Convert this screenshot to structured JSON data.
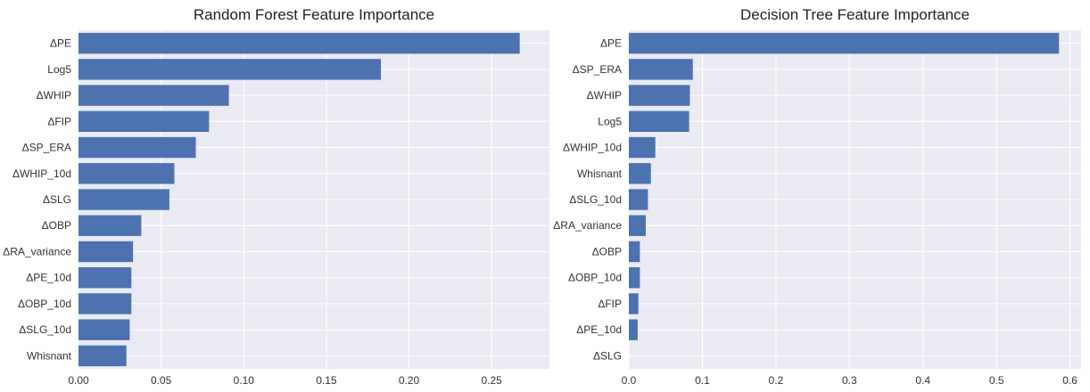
{
  "chart_data": [
    {
      "type": "bar",
      "orientation": "horizontal",
      "title": "Random Forest Feature Importance",
      "categories": [
        "ΔPE",
        "Log5",
        "ΔWHIP",
        "ΔFIP",
        "ΔSP_ERA",
        "ΔWHIP_10d",
        "ΔSLG",
        "ΔOBP",
        "ΔRA_variance",
        "ΔPE_10d",
        "ΔOBP_10d",
        "ΔSLG_10d",
        "Whisnant"
      ],
      "values": [
        0.267,
        0.183,
        0.091,
        0.079,
        0.071,
        0.058,
        0.055,
        0.038,
        0.033,
        0.032,
        0.032,
        0.031,
        0.029
      ],
      "xlim": [
        0,
        0.285
      ],
      "xticks": [
        "0.00",
        "0.05",
        "0.10",
        "0.15",
        "0.20",
        "0.25"
      ],
      "color": "#4c72b0",
      "grid": true
    },
    {
      "type": "bar",
      "orientation": "horizontal",
      "title": "Decision Tree Feature Importance",
      "categories": [
        "ΔPE",
        "ΔSP_ERA",
        "ΔWHIP",
        "Log5",
        "ΔWHIP_10d",
        "Whisnant",
        "ΔSLG_10d",
        "ΔRA_variance",
        "ΔOBP",
        "ΔOBP_10d",
        "ΔFIP",
        "ΔPE_10d",
        "ΔSLG"
      ],
      "values": [
        0.585,
        0.087,
        0.083,
        0.082,
        0.036,
        0.03,
        0.026,
        0.023,
        0.015,
        0.015,
        0.013,
        0.012,
        0.0
      ],
      "xlim": [
        0,
        0.615
      ],
      "xticks": [
        "0.0",
        "0.1",
        "0.2",
        "0.3",
        "0.4",
        "0.5",
        "0.6"
      ],
      "color": "#4c72b0",
      "grid": true
    }
  ],
  "style": {
    "plot_background": "#eaeaf2",
    "grid_color": "#ffffff"
  }
}
